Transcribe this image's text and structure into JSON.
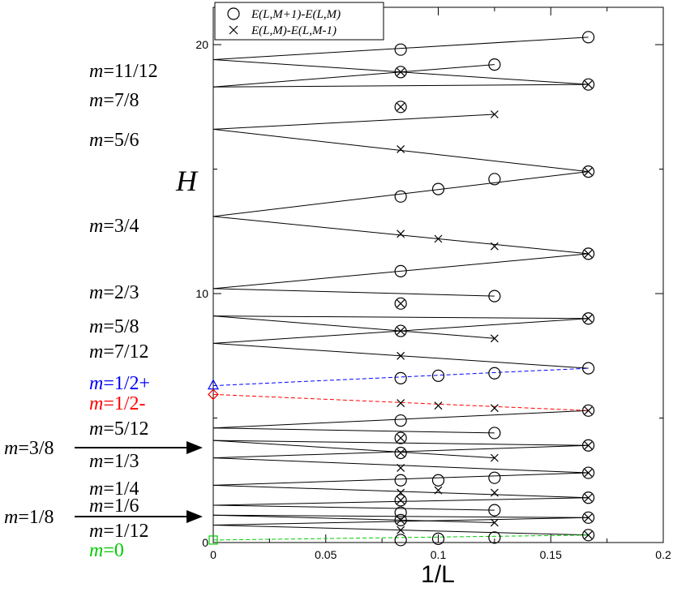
{
  "chart_data": {
    "type": "scatter",
    "xlabel": "1/L",
    "ylabel": "H",
    "xlim": [
      0,
      0.2
    ],
    "ylim": [
      0,
      21.5
    ],
    "x_ticks": [
      "0",
      "0.05",
      "0.1",
      "0.15",
      "0.2"
    ],
    "x_tick_values": [
      0,
      0.05,
      0.1,
      0.15,
      0.2
    ],
    "y_ticks": [
      "0",
      "10",
      "20"
    ],
    "y_tick_values": [
      0,
      10,
      20
    ],
    "legend": [
      {
        "marker": "circle",
        "label": "E(L,M+1)-E(L,M)"
      },
      {
        "marker": "cross",
        "label": "E(L,M)-E(L,M-1)"
      }
    ],
    "series": [
      {
        "name": "E(L,M+1)-E(L,M)",
        "marker": "circle",
        "points": [
          [
            0.1667,
            20.3
          ],
          [
            0.0833,
            19.8
          ],
          [
            0.125,
            19.2
          ],
          [
            0.1667,
            18.4
          ],
          [
            0.0833,
            18.9
          ],
          [
            0.0833,
            17.5
          ],
          [
            0.1667,
            14.9
          ],
          [
            0.125,
            14.6
          ],
          [
            0.1,
            14.2
          ],
          [
            0.0833,
            13.9
          ],
          [
            0.1667,
            11.6
          ],
          [
            0.0833,
            10.9
          ],
          [
            0.125,
            9.9
          ],
          [
            0.0833,
            9.6
          ],
          [
            0.1667,
            9.0
          ],
          [
            0.0833,
            8.5
          ],
          [
            0.1667,
            7.0
          ],
          [
            0.125,
            6.8
          ],
          [
            0.1,
            6.7
          ],
          [
            0.0833,
            6.6
          ],
          [
            0.1667,
            5.3
          ],
          [
            0.0833,
            4.9
          ],
          [
            0.125,
            4.4
          ],
          [
            0.0833,
            4.2
          ],
          [
            0.1667,
            3.9
          ],
          [
            0.0833,
            3.6
          ],
          [
            0.1667,
            2.8
          ],
          [
            0.125,
            2.6
          ],
          [
            0.1,
            2.5
          ],
          [
            0.0833,
            2.5
          ],
          [
            0.1667,
            1.8
          ],
          [
            0.0833,
            1.7
          ],
          [
            0.125,
            1.3
          ],
          [
            0.0833,
            1.2
          ],
          [
            0.1667,
            1.0
          ],
          [
            0.0833,
            0.9
          ],
          [
            0.1667,
            0.3
          ],
          [
            0.125,
            0.2
          ],
          [
            0.1,
            0.15
          ],
          [
            0.0833,
            0.1
          ]
        ]
      },
      {
        "name": "E(L,M)-E(L,M-1)",
        "marker": "cross",
        "points": [
          [
            0.1667,
            18.4
          ],
          [
            0.0833,
            18.9
          ],
          [
            0.0833,
            17.5
          ],
          [
            0.125,
            17.2
          ],
          [
            0.1667,
            14.9
          ],
          [
            0.0833,
            15.8
          ],
          [
            0.1667,
            11.6
          ],
          [
            0.0833,
            12.4
          ],
          [
            0.1,
            12.2
          ],
          [
            0.125,
            11.9
          ],
          [
            0.0833,
            9.6
          ],
          [
            0.1667,
            9.0
          ],
          [
            0.0833,
            8.5
          ],
          [
            0.125,
            8.2
          ],
          [
            0.0833,
            7.5
          ],
          [
            0.1667,
            5.3
          ],
          [
            0.0833,
            5.6
          ],
          [
            0.1,
            5.5
          ],
          [
            0.125,
            5.4
          ],
          [
            0.0833,
            4.2
          ],
          [
            0.1667,
            3.9
          ],
          [
            0.0833,
            3.6
          ],
          [
            0.125,
            3.4
          ],
          [
            0.0833,
            3.0
          ],
          [
            0.1667,
            2.8
          ],
          [
            0.0833,
            2.0
          ],
          [
            0.1,
            2.1
          ],
          [
            0.125,
            2.0
          ],
          [
            0.1667,
            1.8
          ],
          [
            0.0833,
            1.7
          ],
          [
            0.1667,
            1.0
          ],
          [
            0.0833,
            0.9
          ],
          [
            0.125,
            0.8
          ],
          [
            0.0833,
            0.5
          ],
          [
            0.1667,
            0.3
          ]
        ]
      }
    ],
    "fit_lines": [
      {
        "from": [
          0,
          19.4
        ],
        "to": [
          0.1667,
          20.3
        ]
      },
      {
        "from": [
          0,
          19.4
        ],
        "to": [
          0.1667,
          18.4
        ]
      },
      {
        "from": [
          0,
          18.3
        ],
        "to": [
          0.1667,
          18.4
        ]
      },
      {
        "from": [
          0,
          18.3
        ],
        "to": [
          0.125,
          19.2
        ]
      },
      {
        "from": [
          0,
          16.6
        ],
        "to": [
          0.1667,
          14.9
        ]
      },
      {
        "from": [
          0,
          16.6
        ],
        "to": [
          0.125,
          17.2
        ]
      },
      {
        "from": [
          0,
          13.1
        ],
        "to": [
          0.1667,
          14.9
        ]
      },
      {
        "from": [
          0,
          13.1
        ],
        "to": [
          0.1667,
          11.6
        ]
      },
      {
        "from": [
          0,
          10.2
        ],
        "to": [
          0.1667,
          11.6
        ]
      },
      {
        "from": [
          0,
          10.2
        ],
        "to": [
          0.125,
          9.9
        ]
      },
      {
        "from": [
          0,
          9.1
        ],
        "to": [
          0.1667,
          9.0
        ]
      },
      {
        "from": [
          0,
          9.1
        ],
        "to": [
          0.125,
          8.2
        ]
      },
      {
        "from": [
          0,
          8.0
        ],
        "to": [
          0.1667,
          7.0
        ]
      },
      {
        "from": [
          0,
          8.0
        ],
        "to": [
          0.1667,
          9.0
        ]
      },
      {
        "from": [
          0,
          4.6
        ],
        "to": [
          0.1667,
          5.3
        ]
      },
      {
        "from": [
          0,
          4.6
        ],
        "to": [
          0.125,
          4.4
        ]
      },
      {
        "from": [
          0,
          4.1
        ],
        "to": [
          0.1667,
          3.9
        ]
      },
      {
        "from": [
          0,
          4.1
        ],
        "to": [
          0.125,
          3.4
        ]
      },
      {
        "from": [
          0,
          3.4
        ],
        "to": [
          0.1667,
          2.8
        ]
      },
      {
        "from": [
          0,
          3.4
        ],
        "to": [
          0.1667,
          3.9
        ]
      },
      {
        "from": [
          0,
          2.3
        ],
        "to": [
          0.1667,
          2.8
        ]
      },
      {
        "from": [
          0,
          2.3
        ],
        "to": [
          0.1667,
          1.8
        ]
      },
      {
        "from": [
          0,
          1.5
        ],
        "to": [
          0.1667,
          1.8
        ]
      },
      {
        "from": [
          0,
          1.5
        ],
        "to": [
          0.125,
          1.3
        ]
      },
      {
        "from": [
          0,
          1.1
        ],
        "to": [
          0.1667,
          1.0
        ]
      },
      {
        "from": [
          0,
          1.1
        ],
        "to": [
          0.125,
          0.8
        ]
      },
      {
        "from": [
          0,
          0.7
        ],
        "to": [
          0.1667,
          1.0
        ]
      },
      {
        "from": [
          0,
          0.7
        ],
        "to": [
          0.1667,
          0.3
        ]
      }
    ],
    "extrapolations": [
      {
        "name": "m=1/2+",
        "color": "#0000ff",
        "marker": "triangle",
        "from": [
          0,
          6.3
        ],
        "to": [
          0.1667,
          7.0
        ]
      },
      {
        "name": "m=1/2-",
        "color": "#ff0000",
        "marker": "diamond",
        "from": [
          0,
          5.95
        ],
        "to": [
          0.1667,
          5.3
        ]
      },
      {
        "name": "m=0",
        "color": "#00cc00",
        "marker": "square",
        "from": [
          0,
          0.1
        ],
        "to": [
          0.1667,
          0.3
        ]
      }
    ],
    "magnetization_labels": [
      {
        "text": "m=11/12",
        "m": "m",
        "val": "=11/12",
        "color": "#000000",
        "y": 19.4
      },
      {
        "text": "m=7/8",
        "m": "m",
        "val": "=7/8",
        "color": "#000000",
        "y": 18.3
      },
      {
        "text": "m=5/6",
        "m": "m",
        "val": "=5/6",
        "color": "#000000",
        "y": 16.6
      },
      {
        "text": "m=3/4",
        "m": "m",
        "val": "=3/4",
        "color": "#000000",
        "y": 13.1
      },
      {
        "text": "m=2/3",
        "m": "m",
        "val": "=2/3",
        "color": "#000000",
        "y": 10.2
      },
      {
        "text": "m=5/8",
        "m": "m",
        "val": "=5/8",
        "color": "#000000",
        "y": 9.1
      },
      {
        "text": "m=7/12",
        "m": "m",
        "val": "=7/12",
        "color": "#000000",
        "y": 8.0
      },
      {
        "text": "m=1/2+",
        "m": "m",
        "val": "=1/2+",
        "color": "#0000ff",
        "y": 6.3
      },
      {
        "text": "m=1/2-",
        "m": "m",
        "val": "=1/2-",
        "color": "#ff0000",
        "y": 5.95
      },
      {
        "text": "m=5/12",
        "m": "m",
        "val": "=5/12",
        "color": "#000000",
        "y": 4.6
      },
      {
        "text": "m=1/3",
        "m": "m",
        "val": "=1/3",
        "color": "#000000",
        "y": 3.4
      },
      {
        "text": "m=1/4",
        "m": "m",
        "val": "=1/4",
        "color": "#000000",
        "y": 2.3
      },
      {
        "text": "m=1/6",
        "m": "m",
        "val": "=1/6",
        "color": "#000000",
        "y": 1.1
      },
      {
        "text": "m=1/12",
        "m": "m",
        "val": "=1/12",
        "color": "#000000",
        "y": 0.7
      },
      {
        "text": "m=0",
        "m": "m",
        "val": "=0",
        "color": "#00cc00",
        "y": 0.1
      }
    ],
    "arrow_labels": [
      {
        "text": "m=3/8",
        "m": "m",
        "val": "=3/8",
        "target_y": 4.1
      },
      {
        "text": "m=1/8",
        "m": "m",
        "val": "=1/8",
        "target_y": 1.1
      }
    ]
  }
}
